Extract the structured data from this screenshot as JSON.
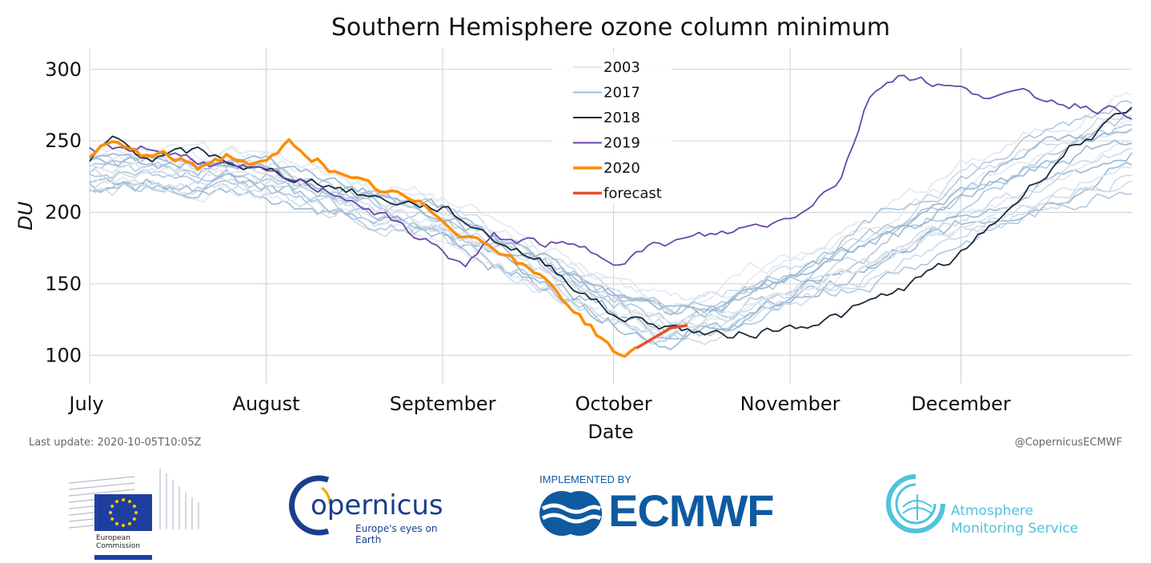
{
  "chart_data": {
    "type": "line",
    "title": "Southern Hemisphere ozone column minimum",
    "xlabel": "Date",
    "ylabel": "DU",
    "x_range": [
      "2020-07-01",
      "2020-12-31"
    ],
    "x_ticks": [
      "July",
      "August",
      "September",
      "October",
      "November",
      "December"
    ],
    "ylim": [
      80,
      315
    ],
    "y_ticks": [
      100,
      150,
      200,
      250,
      300
    ],
    "grid": true,
    "legend_position": "top-center",
    "background_years_note": "",
    "series": [
      {
        "name": "2003",
        "color": "#dfe6ee",
        "points": [
          [
            "07-01",
            232
          ],
          [
            "07-15",
            229
          ],
          [
            "08-01",
            222
          ],
          [
            "08-15",
            208
          ],
          [
            "09-01",
            192
          ],
          [
            "09-15",
            165
          ],
          [
            "10-01",
            138
          ],
          [
            "10-10",
            122
          ],
          [
            "10-20",
            130
          ],
          [
            "11-01",
            145
          ],
          [
            "11-15",
            165
          ],
          [
            "12-01",
            190
          ],
          [
            "12-15",
            210
          ],
          [
            "12-31",
            235
          ]
        ]
      },
      {
        "name": "2017",
        "color": "#9fbcd6",
        "points": [
          [
            "07-01",
            238
          ],
          [
            "07-15",
            236
          ],
          [
            "08-01",
            233
          ],
          [
            "08-15",
            220
          ],
          [
            "09-01",
            198
          ],
          [
            "09-15",
            175
          ],
          [
            "10-01",
            140
          ],
          [
            "10-15",
            128
          ],
          [
            "11-01",
            155
          ],
          [
            "11-15",
            180
          ],
          [
            "12-01",
            215
          ],
          [
            "12-15",
            250
          ],
          [
            "12-31",
            255
          ]
        ]
      },
      {
        "name": "2018",
        "color": "#1a2a3a",
        "points": [
          [
            "07-01",
            235
          ],
          [
            "07-05",
            252
          ],
          [
            "07-12",
            238
          ],
          [
            "07-20",
            242
          ],
          [
            "08-01",
            228
          ],
          [
            "08-10",
            222
          ],
          [
            "08-20",
            210
          ],
          [
            "09-01",
            203
          ],
          [
            "09-10",
            182
          ],
          [
            "09-20",
            162
          ],
          [
            "10-01",
            128
          ],
          [
            "10-10",
            121
          ],
          [
            "10-20",
            113
          ],
          [
            "11-01",
            120
          ],
          [
            "11-10",
            128
          ],
          [
            "11-20",
            145
          ],
          [
            "12-01",
            170
          ],
          [
            "12-10",
            205
          ],
          [
            "12-20",
            245
          ],
          [
            "12-31",
            270
          ]
        ]
      },
      {
        "name": "2019",
        "color": "#6a45a8",
        "points": [
          [
            "07-01",
            244
          ],
          [
            "07-10",
            246
          ],
          [
            "08-01",
            226
          ],
          [
            "08-15",
            212
          ],
          [
            "09-01",
            173
          ],
          [
            "09-05",
            162
          ],
          [
            "09-10",
            182
          ],
          [
            "09-20",
            178
          ],
          [
            "10-01",
            168
          ],
          [
            "10-10",
            178
          ],
          [
            "10-20",
            185
          ],
          [
            "11-01",
            196
          ],
          [
            "11-10",
            225
          ],
          [
            "11-15",
            282
          ],
          [
            "11-20",
            298
          ],
          [
            "12-01",
            285
          ],
          [
            "12-15",
            280
          ],
          [
            "12-31",
            270
          ]
        ]
      },
      {
        "name": "2020",
        "color": "#ff8c00",
        "points": [
          [
            "07-01",
            236
          ],
          [
            "07-05",
            248
          ],
          [
            "07-10",
            240
          ],
          [
            "07-15",
            238
          ],
          [
            "07-20",
            232
          ],
          [
            "07-25",
            240
          ],
          [
            "08-01",
            232
          ],
          [
            "08-05",
            248
          ],
          [
            "08-10",
            238
          ],
          [
            "08-15",
            222
          ],
          [
            "08-20",
            216
          ],
          [
            "08-25",
            210
          ],
          [
            "09-01",
            196
          ],
          [
            "09-05",
            185
          ],
          [
            "09-10",
            178
          ],
          [
            "09-15",
            162
          ],
          [
            "09-20",
            150
          ],
          [
            "09-25",
            128
          ],
          [
            "09-30",
            108
          ],
          [
            "10-03",
            97
          ],
          [
            "10-05",
            105
          ]
        ]
      },
      {
        "name": "forecast",
        "color": "#e8502a",
        "points": [
          [
            "10-05",
            105
          ],
          [
            "10-08",
            112
          ],
          [
            "10-11",
            119
          ],
          [
            "10-14",
            121
          ]
        ]
      }
    ]
  },
  "footer": {
    "last_update": "Last update: 2020-10-05T10:05Z",
    "handle": "@CopernicusECMWF",
    "logos": {
      "ec_line1": "European",
      "ec_line2": "Commission",
      "copernicus_name": "opernicus",
      "copernicus_tagline": "Europe's eyes on Earth",
      "ecmwf_implemented": "IMPLEMENTED BY",
      "ecmwf_name": "ECMWF",
      "cams_line1": "Atmosphere",
      "cams_line2": "Monitoring Service"
    }
  },
  "colors": {
    "background_lines": "#a9c1d9",
    "grid": "#d0d0d0",
    "ecmwf_blue": "#0f5aa0",
    "copernicus_blue": "#1a3e8c",
    "cams_cyan": "#4fc3dd"
  }
}
